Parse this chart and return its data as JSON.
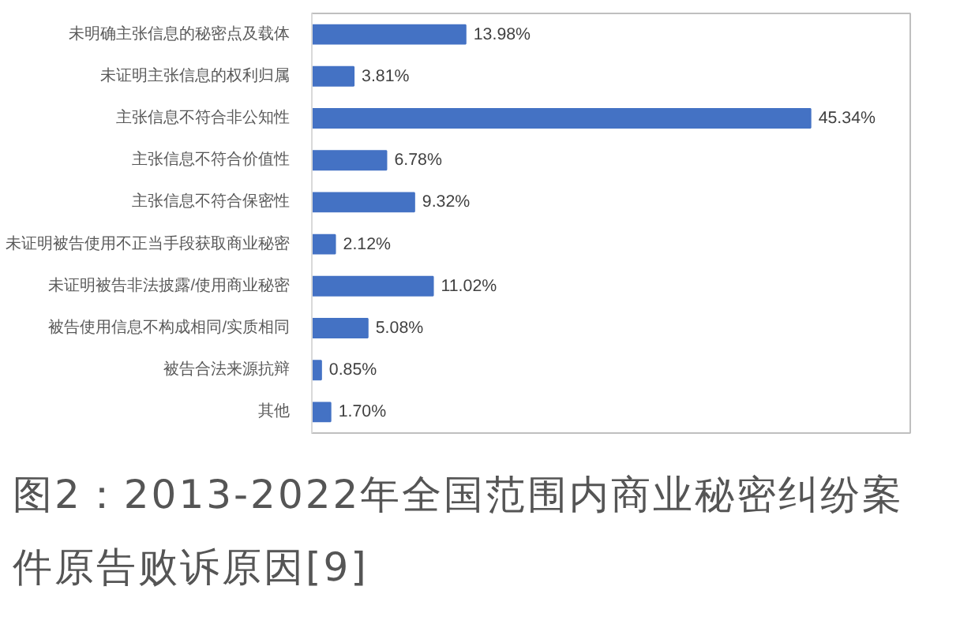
{
  "chart_data": {
    "type": "bar",
    "orientation": "horizontal",
    "categories": [
      "未明确主张信息的秘密点及载体",
      "未证明主张信息的权利归属",
      "主张信息不符合非公知性",
      "主张信息不符合价值性",
      "主张信息不符合保密性",
      "未证明被告使用不正当手段获取商业秘密",
      "未证明被告非法披露/使用商业秘密",
      "被告使用信息不构成相同/实质相同",
      "被告合法来源抗辩",
      "其他"
    ],
    "values": [
      13.98,
      3.81,
      45.34,
      6.78,
      9.32,
      2.12,
      11.02,
      5.08,
      0.85,
      1.7
    ],
    "value_labels": [
      "13.98%",
      "3.81%",
      "45.34%",
      "6.78%",
      "9.32%",
      "2.12%",
      "11.02%",
      "5.08%",
      "0.85%",
      "1.70%"
    ],
    "color": "#4472c4",
    "grid": false,
    "tick_labels": "y",
    "annotations": [
      "图2：2013-2022年全国范围内商业秘密纠纷案件原告败诉原因[9]"
    ]
  }
}
